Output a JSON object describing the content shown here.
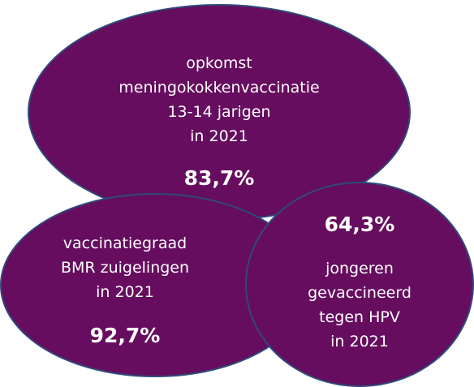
{
  "colors": {
    "bubble_fill": "#660d5f",
    "bubble_border": "#2f4a7a",
    "text": "#ffffff"
  },
  "bubbles": {
    "meningococcal": {
      "lines": [
        "opkomst",
        "meningokokkenvaccinatie",
        "13-14 jarigen",
        "in 2021"
      ],
      "value": "83,7%"
    },
    "mmr": {
      "lines": [
        "vaccinatiegraad",
        "BMR zuigelingen",
        "in 2021"
      ],
      "value": "92,7%"
    },
    "hpv": {
      "value": "64,3%",
      "lines": [
        "jongeren",
        "gevaccineerd",
        "tegen HPV",
        "in 2021"
      ]
    }
  }
}
